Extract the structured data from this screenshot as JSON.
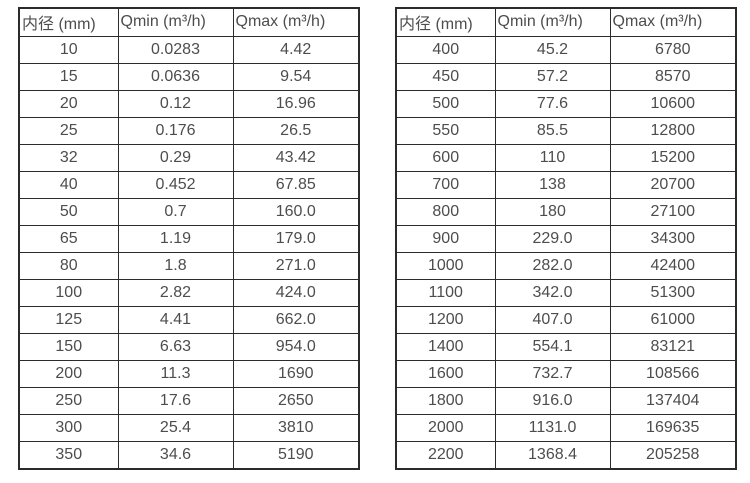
{
  "style": {
    "background": "#ffffff",
    "text_color": "#4d4d4d",
    "border_color": "#2b2b2b"
  },
  "chart_data": [
    {
      "type": "table",
      "title": "",
      "columns": [
        "内径 (mm)",
        "Qmin (m³/h)",
        "Qmax (m³/h)"
      ],
      "rows": [
        [
          "10",
          "0.0283",
          "4.42"
        ],
        [
          "15",
          "0.0636",
          "9.54"
        ],
        [
          "20",
          "0.12",
          "16.96"
        ],
        [
          "25",
          "0.176",
          "26.5"
        ],
        [
          "32",
          "0.29",
          "43.42"
        ],
        [
          "40",
          "0.452",
          "67.85"
        ],
        [
          "50",
          "0.7",
          "160.0"
        ],
        [
          "65",
          "1.19",
          "179.0"
        ],
        [
          "80",
          "1.8",
          "271.0"
        ],
        [
          "100",
          "2.82",
          "424.0"
        ],
        [
          "125",
          "4.41",
          "662.0"
        ],
        [
          "150",
          "6.63",
          "954.0"
        ],
        [
          "200",
          "11.3",
          "1690"
        ],
        [
          "250",
          "17.6",
          "2650"
        ],
        [
          "300",
          "25.4",
          "3810"
        ],
        [
          "350",
          "34.6",
          "5190"
        ]
      ]
    },
    {
      "type": "table",
      "title": "",
      "columns": [
        "内径 (mm)",
        "Qmin (m³/h)",
        "Qmax (m³/h)"
      ],
      "rows": [
        [
          "400",
          "45.2",
          "6780"
        ],
        [
          "450",
          "57.2",
          "8570"
        ],
        [
          "500",
          "77.6",
          "10600"
        ],
        [
          "550",
          "85.5",
          "12800"
        ],
        [
          "600",
          "110",
          "15200"
        ],
        [
          "700",
          "138",
          "20700"
        ],
        [
          "800",
          "180",
          "27100"
        ],
        [
          "900",
          "229.0",
          "34300"
        ],
        [
          "1000",
          "282.0",
          "42400"
        ],
        [
          "1100",
          "342.0",
          "51300"
        ],
        [
          "1200",
          "407.0",
          "61000"
        ],
        [
          "1400",
          "554.1",
          "83121"
        ],
        [
          "1600",
          "732.7",
          "108566"
        ],
        [
          "1800",
          "916.0",
          "137404"
        ],
        [
          "2000",
          "1131.0",
          "169635"
        ],
        [
          "2200",
          "1368.4",
          "205258"
        ]
      ]
    }
  ]
}
